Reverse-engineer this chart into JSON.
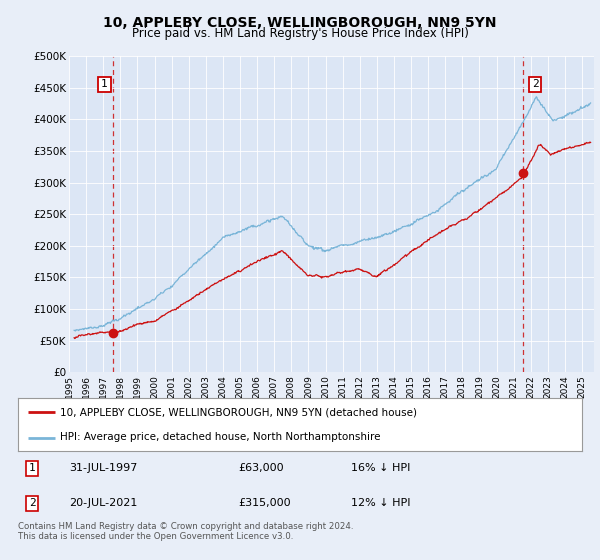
{
  "title": "10, APPLEBY CLOSE, WELLINGBOROUGH, NN9 5YN",
  "subtitle": "Price paid vs. HM Land Registry's House Price Index (HPI)",
  "background_color": "#e8eef8",
  "plot_bg_color": "#dce6f5",
  "ylim": [
    0,
    500000
  ],
  "yticks": [
    0,
    50000,
    100000,
    150000,
    200000,
    250000,
    300000,
    350000,
    400000,
    450000,
    500000
  ],
  "ytick_labels": [
    "£0",
    "£50K",
    "£100K",
    "£150K",
    "£200K",
    "£250K",
    "£300K",
    "£350K",
    "£400K",
    "£450K",
    "£500K"
  ],
  "xlim_start": 1995.3,
  "xlim_end": 2025.7,
  "xtick_years": [
    1995,
    1996,
    1997,
    1998,
    1999,
    2000,
    2001,
    2002,
    2003,
    2004,
    2005,
    2006,
    2007,
    2008,
    2009,
    2010,
    2011,
    2012,
    2013,
    2014,
    2015,
    2016,
    2017,
    2018,
    2019,
    2020,
    2021,
    2022,
    2023,
    2024,
    2025
  ],
  "hpi_color": "#7ab5d8",
  "price_color": "#cc1111",
  "point1_x": 1997.58,
  "point1_y": 63000,
  "point2_x": 2021.55,
  "point2_y": 315000,
  "vline1_x": 1997.58,
  "vline2_x": 2021.55,
  "legend_line1": "10, APPLEBY CLOSE, WELLINGBOROUGH, NN9 5YN (detached house)",
  "legend_line2": "HPI: Average price, detached house, North Northamptonshire",
  "footer": "Contains HM Land Registry data © Crown copyright and database right 2024.\nThis data is licensed under the Open Government Licence v3.0."
}
